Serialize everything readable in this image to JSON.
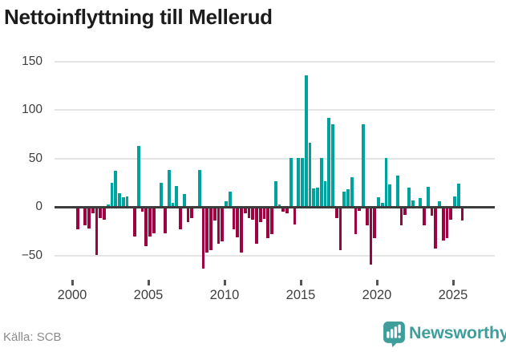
{
  "title": "Nettoinflyttning till Mellerud",
  "footer": {
    "source": "Källa: SCB",
    "brand": "Newsworthy"
  },
  "chart_data": {
    "type": "bar",
    "title": "Nettoinflyttning till Mellerud",
    "frequency": "quarterly",
    "period_start": "2000 Q1",
    "period_end": "2025 Q3",
    "grid": true,
    "legend": "none",
    "y_ticks": [
      150,
      100,
      50,
      0,
      -50
    ],
    "ylim": [
      -70,
      160
    ],
    "x_tick_labels": [
      "2000",
      "2005",
      "2010",
      "2015",
      "2020",
      "2025"
    ],
    "colors": {
      "positive": "#00a29e",
      "negative": "#9d0241",
      "zero_line": "#3c3c3c",
      "gridline": "#e4e4e4"
    },
    "values": [
      0,
      -22,
      0,
      -18,
      -21,
      -5,
      -48,
      -10,
      -12,
      2,
      24,
      36,
      13,
      9,
      10,
      0,
      -29,
      62,
      -4,
      -39,
      -29,
      -26,
      0,
      24,
      -26,
      37,
      3,
      21,
      -22,
      12,
      -14,
      -10,
      0,
      37,
      -62,
      -46,
      -43,
      -13,
      -37,
      -34,
      5,
      15,
      -22,
      -30,
      -46,
      -5,
      -10,
      -12,
      -37,
      -14,
      -11,
      -31,
      -27,
      26,
      2,
      -4,
      -5,
      50,
      -17,
      50,
      50,
      135,
      65,
      18,
      19,
      50,
      26,
      91,
      84,
      -10,
      -43,
      15,
      17,
      30,
      -27,
      -3,
      84,
      -18,
      -58,
      -31,
      9,
      3,
      50,
      22,
      0,
      31,
      -18,
      -7,
      19,
      6,
      0,
      8,
      -18,
      20,
      -8,
      -42,
      5,
      -33,
      -31,
      -12,
      10,
      23,
      -13
    ]
  }
}
